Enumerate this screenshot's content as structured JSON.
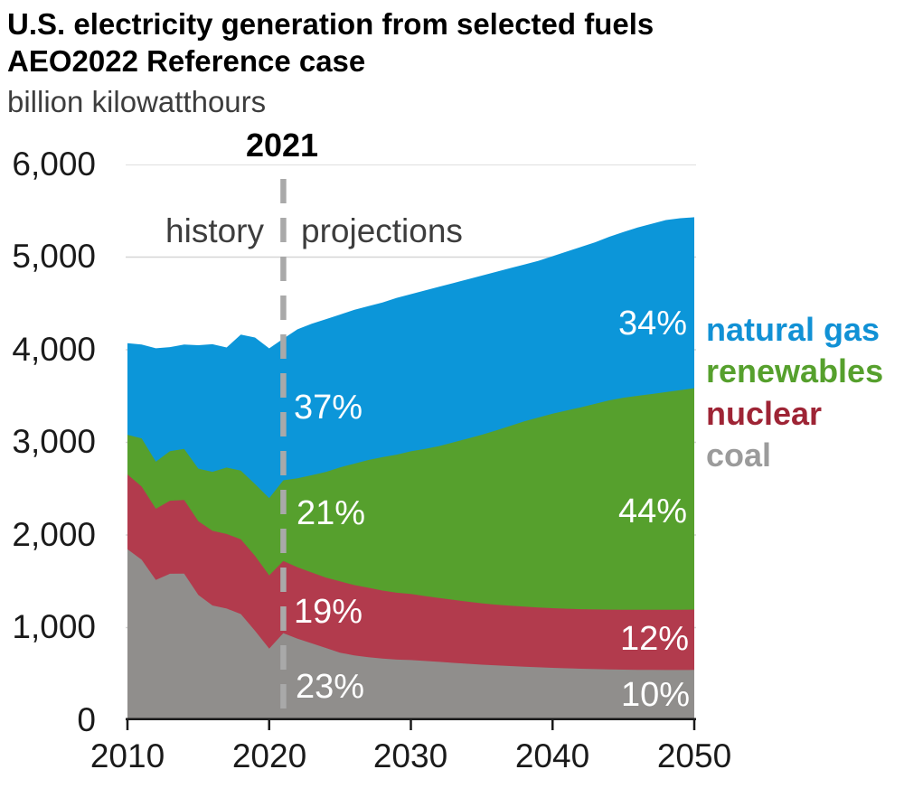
{
  "header": {
    "title_line1": "U.S. electricity generation from selected fuels",
    "title_line2": "AEO2022 Reference case",
    "subtitle": "billion kilowatthours"
  },
  "annotations": {
    "divider_year_label": "2021",
    "history": "history",
    "projections": "projections"
  },
  "share_labels": {
    "y2021": {
      "natural_gas": "37%",
      "renewables": "21%",
      "nuclear": "19%",
      "coal": "23%"
    },
    "y2050": {
      "natural_gas": "34%",
      "renewables": "44%",
      "nuclear": "12%",
      "coal": "10%"
    }
  },
  "legend": [
    {
      "label": "natural gas",
      "color": "#1191d5"
    },
    {
      "label": "renewables",
      "color": "#56a02d"
    },
    {
      "label": "nuclear",
      "color": "#9e2435"
    },
    {
      "label": "coal",
      "color": "#9b9b9b"
    }
  ],
  "chart_data": {
    "type": "area",
    "stacked": true,
    "title": "U.S. electricity generation from selected fuels, AEO2022 Reference case",
    "ylabel": "billion kilowatthours",
    "xlabel": "",
    "ylim": [
      0,
      6000
    ],
    "grid": "horizontal",
    "legend_position": "right",
    "divider_year": 2021,
    "divider_color": "#a9a9a9",
    "gridline_color": "#d6d6d6",
    "axis_color": "#1a1a1a",
    "x": [
      2010,
      2011,
      2012,
      2013,
      2014,
      2015,
      2016,
      2017,
      2018,
      2019,
      2020,
      2021,
      2022,
      2023,
      2024,
      2025,
      2026,
      2027,
      2028,
      2029,
      2030,
      2031,
      2032,
      2033,
      2034,
      2035,
      2036,
      2037,
      2038,
      2039,
      2040,
      2041,
      2042,
      2043,
      2044,
      2045,
      2046,
      2047,
      2048,
      2049,
      2050
    ],
    "series": [
      {
        "name": "coal",
        "color": "#908e8c",
        "values": [
          1847,
          1733,
          1514,
          1581,
          1582,
          1352,
          1239,
          1206,
          1146,
          966,
          774,
          940,
          880,
          830,
          780,
          730,
          700,
          680,
          665,
          655,
          650,
          640,
          630,
          620,
          610,
          600,
          592,
          585,
          578,
          572,
          566,
          561,
          556,
          552,
          549,
          546,
          544,
          543,
          542,
          542,
          543
        ]
      },
      {
        "name": "nuclear",
        "color": "#b23b4d",
        "values": [
          807,
          790,
          769,
          789,
          797,
          797,
          806,
          805,
          807,
          809,
          790,
          780,
          772,
          765,
          760,
          770,
          760,
          750,
          735,
          722,
          713,
          700,
          690,
          680,
          670,
          662,
          656,
          652,
          648,
          646,
          644,
          643,
          643,
          644,
          645,
          646,
          648,
          649,
          650,
          651,
          652
        ]
      },
      {
        "name": "renewables",
        "color": "#56a02d",
        "values": [
          428,
          520,
          508,
          534,
          551,
          567,
          637,
          717,
          742,
          775,
          834,
          870,
          960,
          1050,
          1140,
          1230,
          1310,
          1380,
          1440,
          1490,
          1540,
          1590,
          1640,
          1700,
          1760,
          1820,
          1880,
          1940,
          2000,
          2050,
          2100,
          2140,
          2180,
          2220,
          2260,
          2290,
          2310,
          2330,
          2350,
          2370,
          2390
        ]
      },
      {
        "name": "natural gas",
        "color": "#0c96d9",
        "values": [
          988,
          1013,
          1225,
          1124,
          1126,
          1333,
          1378,
          1296,
          1468,
          1582,
          1617,
          1530,
          1608,
          1635,
          1650,
          1650,
          1660,
          1660,
          1670,
          1693,
          1697,
          1710,
          1720,
          1720,
          1720,
          1718,
          1712,
          1703,
          1694,
          1692,
          1700,
          1716,
          1731,
          1744,
          1766,
          1788,
          1818,
          1838,
          1858,
          1857,
          1845
        ]
      }
    ],
    "xticks": [
      2010,
      2020,
      2030,
      2040,
      2050
    ],
    "xtick_labels": [
      "2010",
      "2020",
      "2030",
      "2040",
      "2050"
    ],
    "ytick_labels": [
      "6,000",
      "5,000",
      "4,000",
      "3,000",
      "2,000",
      "1,000",
      "0"
    ]
  }
}
